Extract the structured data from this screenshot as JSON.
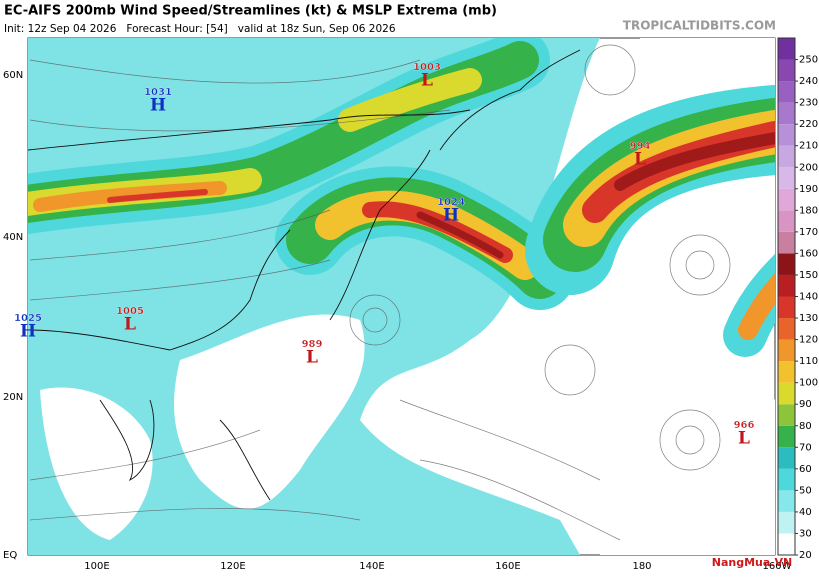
{
  "header": {
    "title": "EC-AIFS 200mb Wind Speed/Streamlines (kt) & MSLP Extrema (mb)",
    "subtitle": "Init: 12z Sep 04 2026   Forecast Hour: [54]   valid at 18z Sun, Sep 06 2026",
    "credit": "TROPICALTIDBITS.COM"
  },
  "map": {
    "lat_labels": [
      "60N",
      "40N",
      "20N",
      "EQ"
    ],
    "lon_labels": [
      "100E",
      "120E",
      "140E",
      "160E",
      "180",
      "160W"
    ],
    "extrema": [
      {
        "type": "L",
        "value": 1003
      },
      {
        "type": "H",
        "value": 1031
      },
      {
        "type": "L",
        "value": 994
      },
      {
        "type": "H",
        "value": 1024
      },
      {
        "type": "H",
        "value": 1025
      },
      {
        "type": "L",
        "value": 1005
      },
      {
        "type": "L",
        "value": 989
      },
      {
        "type": "L",
        "value": 966
      }
    ]
  },
  "colorbar": {
    "ticks": [
      20,
      30,
      40,
      50,
      60,
      70,
      80,
      90,
      100,
      110,
      120,
      130,
      140,
      150,
      160,
      170,
      180,
      190,
      200,
      210,
      220,
      230,
      240,
      250
    ],
    "colors": [
      "#ffffff",
      "#bff2f2",
      "#86e8ea",
      "#4fd8dc",
      "#2bbcc0",
      "#35b24a",
      "#8cc43a",
      "#d9d92e",
      "#f2c12e",
      "#f0962a",
      "#e8642a",
      "#d9362a",
      "#b81e22",
      "#8c1418",
      "#c97fa0",
      "#d895c4",
      "#e0a8d8",
      "#d8b8e8",
      "#c8a8e0",
      "#b890d8",
      "#a878cc",
      "#9860c0",
      "#8848b0",
      "#7030a0"
    ]
  },
  "watermark": "NangMua.VN"
}
